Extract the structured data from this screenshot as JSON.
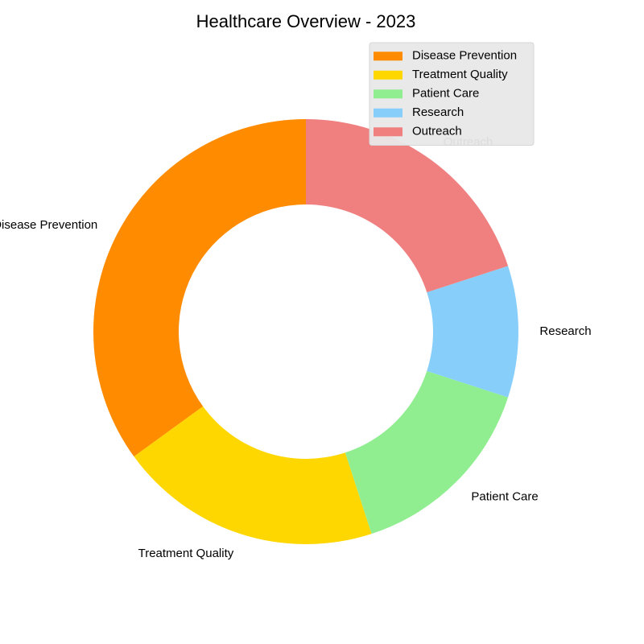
{
  "chart_data": {
    "type": "pie",
    "title": "Healthcare Overview - 2023",
    "donut": true,
    "start_angle_deg": 90,
    "direction": "counterclockwise",
    "labels": [
      "Disease Prevention",
      "Treatment Quality",
      "Patient Care",
      "Research",
      "Outreach"
    ],
    "values": [
      35,
      20,
      15,
      10,
      20
    ],
    "colors": [
      "#FF8C00",
      "#FFD700",
      "#90EE90",
      "#87CEFA",
      "#F08080"
    ],
    "legend": {
      "placement": "upper right",
      "background": "#E8E8E8",
      "entries": [
        "Disease Prevention",
        "Treatment Quality",
        "Patient Care",
        "Research",
        "Outreach"
      ]
    }
  }
}
